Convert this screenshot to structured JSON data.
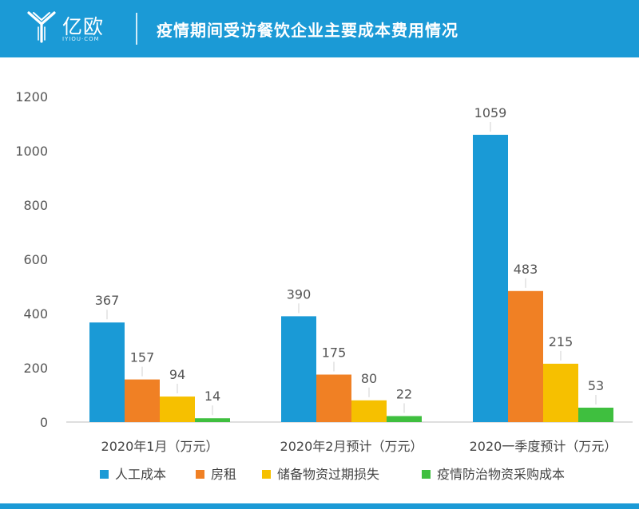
{
  "header": {
    "brand_name": "亿欧",
    "brand_domain": "IYIOU·COM",
    "title": "疫情期间受访餐饮企业主要成本费用情况"
  },
  "colors": {
    "header_bg": "#1b9ad6",
    "series": [
      "#1a9ad6",
      "#f08024",
      "#f6c000",
      "#3fbf3f"
    ]
  },
  "chart_data": {
    "type": "bar",
    "categories": [
      "2020年1月（万元）",
      "2020年2月预计（万元）",
      "2020一季度预计（万元）"
    ],
    "series": [
      {
        "name": "人工成本",
        "values": [
          367,
          390,
          1059
        ]
      },
      {
        "name": "房租",
        "values": [
          157,
          175,
          483
        ]
      },
      {
        "name": "储备物资过期损失",
        "values": [
          94,
          80,
          215
        ]
      },
      {
        "name": "疫情防治物资采购成本",
        "values": [
          14,
          22,
          53
        ]
      }
    ],
    "ylim": [
      0,
      1200
    ],
    "yticks": [
      0,
      200,
      400,
      600,
      800,
      1000,
      1200
    ],
    "ytick_labels": [
      "0",
      "200",
      "400",
      "600",
      "800",
      "1000",
      "1200"
    ],
    "grid": false,
    "legend_position": "bottom",
    "data_labels": true
  }
}
